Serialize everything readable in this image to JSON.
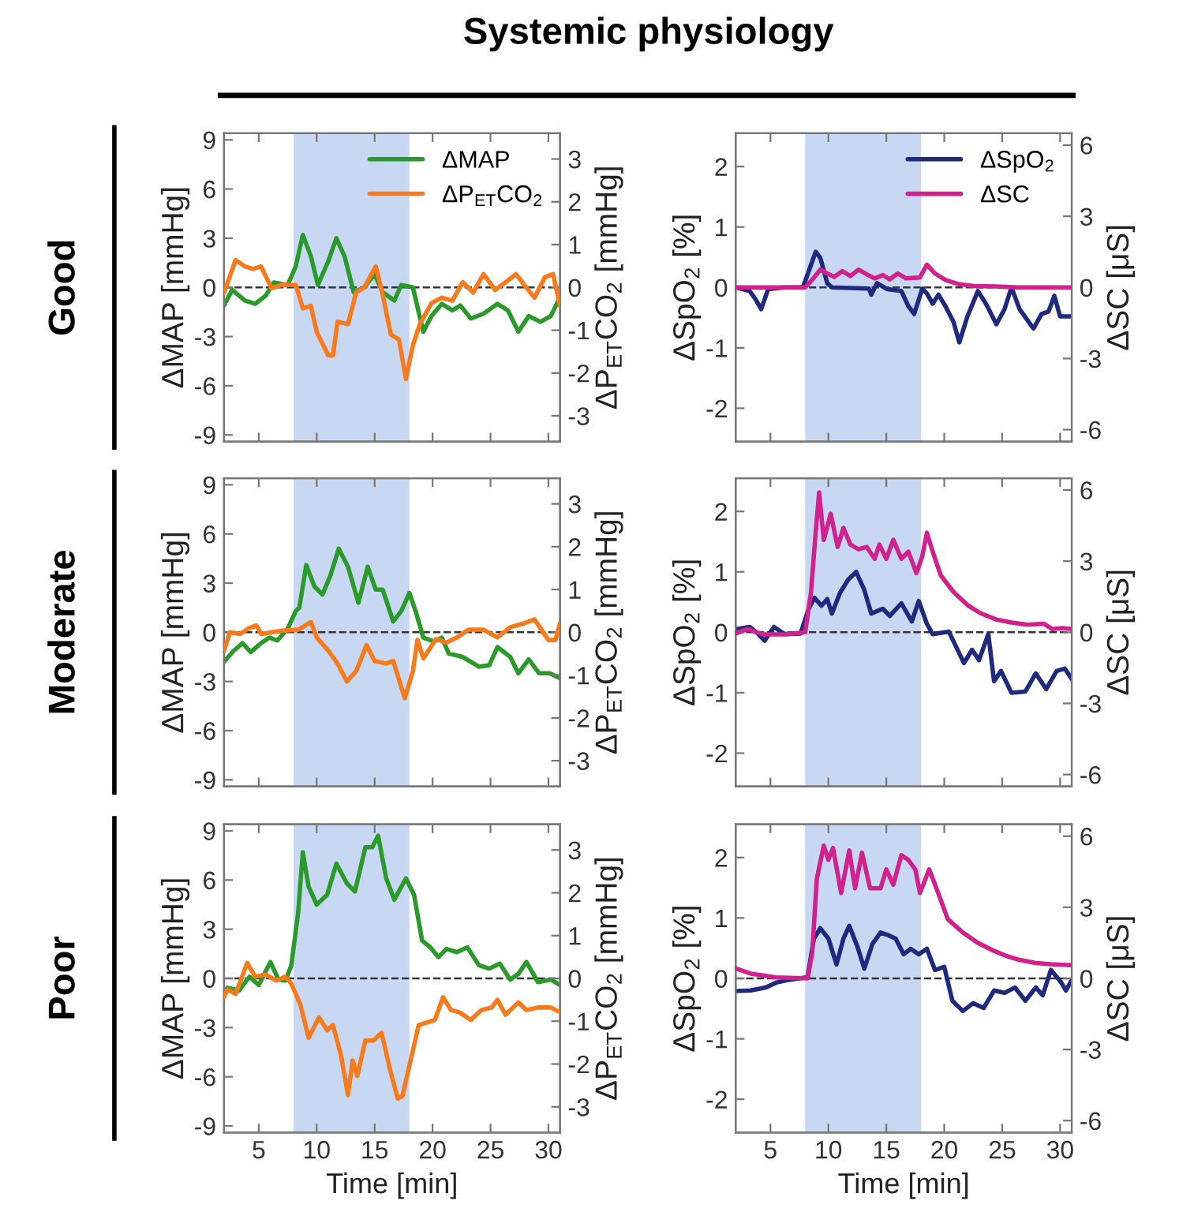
{
  "chart_data": [
    {
      "type": "line",
      "title": "Systemic physiology",
      "subtitle": "Good",
      "ylabel": "ΔMAP [mmHg]",
      "y2label": "ΔP$_{ET}$CO$_{2}$ [mmHg]",
      "xlim": [
        2,
        31
      ],
      "xticks": [
        5,
        10,
        15,
        20,
        25,
        30
      ],
      "ylim": [
        -9.4,
        9.4
      ],
      "yticks": [
        -9,
        -6,
        -3,
        0,
        3,
        6,
        9
      ],
      "y2lim": [
        -3.6,
        3.6
      ],
      "y2ticks": [
        -3,
        -2,
        -1,
        0,
        1,
        2,
        3
      ],
      "tick_labels": "y",
      "legend": "top right",
      "bands": [
        {
          "axis": "x",
          "from": 8,
          "to": 18,
          "color": "#c9d8f2"
        }
      ],
      "ref_lines": [
        {
          "axis": "y",
          "value": 0,
          "color": "#333333",
          "line_style": "dashed"
        }
      ],
      "series": [
        {
          "name": "ΔMAP",
          "color": "#2a9a2a",
          "x": [
            2,
            2.7,
            3.8,
            4.7,
            5.6,
            6.3,
            7.5,
            8.2,
            8.8,
            9.5,
            10.1,
            11.0,
            11.7,
            12.4,
            13.2,
            14.1,
            15.0,
            15.7,
            16.7,
            17.3,
            18.3,
            19.2,
            19.9,
            20.8,
            21.7,
            22.4,
            23.3,
            24.4,
            25.6,
            26.5,
            27.4,
            28.3,
            29.3,
            30.2,
            31
          ],
          "values": [
            -1.1,
            -0.15,
            -0.8,
            -1.0,
            -0.5,
            0.3,
            0.15,
            1.3,
            3.2,
            1.9,
            0.15,
            1.6,
            3.0,
            1.9,
            -0.3,
            0,
            0.8,
            -0.3,
            -0.8,
            0.15,
            0,
            -2.7,
            -1.75,
            -1.0,
            -1.4,
            -1.1,
            -1.9,
            -1.6,
            -1.0,
            -1.4,
            -2.7,
            -1.75,
            -2.1,
            -1.75,
            -0.6
          ]
        },
        {
          "name": "ΔP$_{ET}$CO$_{2}$",
          "color": "#f97a1b",
          "axis": "y2",
          "x": [
            2,
            3.0,
            3.8,
            4.5,
            5.2,
            6.1,
            7.0,
            8.2,
            8.8,
            9.5,
            10.0,
            11.0,
            11.4,
            11.8,
            12.7,
            13.4,
            14.1,
            15.1,
            15.7,
            16.4,
            17.1,
            17.7,
            18.3,
            18.9,
            19.9,
            20.8,
            21.7,
            22.6,
            23.5,
            24.4,
            25.4,
            26.3,
            27.2,
            27.9,
            28.8,
            29.7,
            30.4,
            31
          ],
          "values": [
            -0.12,
            0.64,
            0.49,
            0.43,
            0.49,
            -0.02,
            0.06,
            0.06,
            -0.49,
            -0.43,
            -1.04,
            -1.59,
            -1.59,
            -0.8,
            -0.86,
            -0.12,
            0,
            0.49,
            -0.18,
            -1.1,
            -1.22,
            -2.14,
            -1.35,
            -0.86,
            -0.37,
            -0.24,
            -0.31,
            0.12,
            -0.12,
            0.31,
            -0.06,
            0.12,
            0.31,
            0.06,
            -0.24,
            0.24,
            0.31,
            -0.43
          ]
        }
      ]
    },
    {
      "type": "line",
      "ylabel": "ΔSpO$_{2}$ [%]",
      "y2label": "ΔSC [μS]",
      "xlim": [
        2,
        31
      ],
      "xticks": [
        5,
        10,
        15,
        20,
        25,
        30
      ],
      "ylim": [
        -2.55,
        2.55
      ],
      "yticks": [
        -2,
        -1,
        0,
        1,
        2
      ],
      "y2lim": [
        -6.5,
        6.5
      ],
      "y2ticks": [
        -6,
        -3,
        0,
        3,
        6
      ],
      "tick_labels": "y",
      "legend": "top right",
      "bands": [
        {
          "axis": "x",
          "from": 8,
          "to": 18,
          "color": "#c9d8f2"
        }
      ],
      "ref_lines": [
        {
          "axis": "y",
          "value": 0,
          "color": "#333333",
          "line_style": "dashed"
        }
      ],
      "series": [
        {
          "name": "ΔSpO$_{2}$",
          "color": "#1f2a7e",
          "x": [
            2,
            3.2,
            3.7,
            4.2,
            4.8,
            6.2,
            7.8,
            8.4,
            8.9,
            9.3,
            9.9,
            10.3,
            13.5,
            13.7,
            14.2,
            15.1,
            16.3,
            16.9,
            17.4,
            18.1,
            18.5,
            19.0,
            19.5,
            20.1,
            20.8,
            21.3,
            22.0,
            22.9,
            23.6,
            24.5,
            25.2,
            25.8,
            26.5,
            27.7,
            28.4,
            29.0,
            29.5,
            30.0,
            31
          ],
          "values": [
            0,
            -0.06,
            -0.19,
            -0.36,
            -0.03,
            0,
            0,
            0.32,
            0.59,
            0.49,
            0.07,
            0,
            -0.02,
            -0.12,
            0.07,
            -0.03,
            -0.06,
            -0.31,
            -0.44,
            -0.02,
            -0.1,
            -0.27,
            -0.12,
            -0.31,
            -0.57,
            -0.91,
            -0.48,
            -0.06,
            -0.27,
            -0.61,
            -0.36,
            0,
            -0.36,
            -0.68,
            -0.44,
            -0.4,
            -0.14,
            -0.48,
            -0.48
          ]
        },
        {
          "name": "ΔSC",
          "color": "#d0218c",
          "axis": "y2",
          "x": [
            2,
            8.0,
            8.7,
            9.3,
            9.9,
            10.5,
            11.2,
            11.9,
            12.6,
            13.3,
            14.0,
            14.7,
            15.3,
            16.0,
            16.7,
            17.9,
            18.5,
            19.2,
            20.1,
            21.3,
            22.6,
            24.5,
            26.3,
            31
          ],
          "values": [
            0,
            0,
            0.38,
            0.75,
            0.59,
            0.44,
            0.69,
            0.48,
            0.75,
            0.55,
            0.38,
            0.52,
            0.34,
            0.59,
            0.38,
            0.42,
            0.96,
            0.59,
            0.31,
            0.13,
            0.06,
            0.04,
            0,
            0
          ]
        }
      ]
    },
    {
      "type": "line",
      "subtitle": "Moderate",
      "ylabel": "ΔMAP [mmHg]",
      "y2label": "ΔP$_{ET}$CO$_{2}$ [mmHg]",
      "xlim": [
        2,
        31
      ],
      "xticks": [
        5,
        10,
        15,
        20,
        25,
        30
      ],
      "ylim": [
        -9.4,
        9.4
      ],
      "yticks": [
        -9,
        -6,
        -3,
        0,
        3,
        6,
        9
      ],
      "y2lim": [
        -3.6,
        3.6
      ],
      "y2ticks": [
        -3,
        -2,
        -1,
        0,
        1,
        2,
        3
      ],
      "tick_labels": "y",
      "bands": [
        {
          "axis": "x",
          "from": 8,
          "to": 18,
          "color": "#c9d8f2"
        }
      ],
      "ref_lines": [
        {
          "axis": "y",
          "value": 0,
          "color": "#333333",
          "line_style": "dashed"
        }
      ],
      "series": [
        {
          "color": "#2a9a2a",
          "x": [
            2,
            2.8,
            3.6,
            4.3,
            5.2,
            5.9,
            6.6,
            7.5,
            8.2,
            8.5,
            9.1,
            9.8,
            10.5,
            11.2,
            11.9,
            12.7,
            13.6,
            14.4,
            15.1,
            15.7,
            16.6,
            17.3,
            18.0,
            18.6,
            19.2,
            20.1,
            20.8,
            21.4,
            22.6,
            24.0,
            24.9,
            25.6,
            26.7,
            27.4,
            28.3,
            29.2,
            30.1,
            31
          ],
          "values": [
            -1.8,
            -1.15,
            -0.66,
            -1.2,
            -0.66,
            -0.33,
            -0.5,
            0.23,
            1.3,
            1.5,
            4.1,
            2.8,
            2.3,
            3.5,
            5.1,
            4.0,
            1.8,
            4.0,
            2.6,
            2.6,
            0.66,
            1.3,
            2.4,
            1.15,
            -0.33,
            -0.56,
            -0.33,
            -1.3,
            -1.5,
            -2.1,
            -2.0,
            -0.9,
            -1.5,
            -2.5,
            -1.65,
            -2.5,
            -2.5,
            -2.8
          ]
        },
        {
          "color": "#f97a1b",
          "axis": "y2",
          "x": [
            2,
            2.5,
            3.4,
            4.1,
            4.8,
            5.2,
            7.0,
            8.4,
            9.5,
            10.0,
            11.0,
            11.8,
            12.6,
            13.4,
            14.3,
            15.0,
            16.0,
            16.6,
            17.6,
            18.3,
            18.7,
            19.2,
            20.3,
            21.2,
            22.1,
            23.1,
            24.4,
            25.6,
            26.7,
            27.9,
            28.8,
            30.0,
            30.6,
            31
          ],
          "values": [
            -0.43,
            0,
            -0.04,
            0.09,
            0.16,
            -0.04,
            0.04,
            0.06,
            0.24,
            -0.12,
            -0.43,
            -0.73,
            -1.15,
            -0.91,
            -0.3,
            -0.67,
            -0.73,
            -0.67,
            -1.54,
            -0.91,
            -0.18,
            -0.61,
            -0.16,
            -0.24,
            -0.12,
            0.06,
            0.06,
            -0.12,
            0.12,
            0.21,
            0.3,
            -0.18,
            -0.18,
            0.21
          ]
        }
      ]
    },
    {
      "type": "line",
      "ylabel": "ΔSpO$_{2}$ [%]",
      "y2label": "ΔSC [μS]",
      "xlim": [
        2,
        31
      ],
      "xticks": [
        5,
        10,
        15,
        20,
        25,
        30
      ],
      "ylim": [
        -2.55,
        2.55
      ],
      "yticks": [
        -2,
        -1,
        0,
        1,
        2
      ],
      "y2lim": [
        -6.5,
        6.5
      ],
      "y2ticks": [
        -6,
        -3,
        0,
        3,
        6
      ],
      "tick_labels": "y",
      "bands": [
        {
          "axis": "x",
          "from": 8,
          "to": 18,
          "color": "#c9d8f2"
        }
      ],
      "ref_lines": [
        {
          "axis": "y",
          "value": 0,
          "color": "#333333",
          "line_style": "dashed"
        }
      ],
      "series": [
        {
          "color": "#1f2a7e",
          "x": [
            2,
            3.2,
            3.9,
            4.5,
            5.3,
            6.2,
            7.6,
            8.3,
            8.8,
            9.4,
            9.9,
            10.3,
            11.0,
            11.7,
            12.4,
            13.1,
            13.7,
            14.7,
            15.3,
            16.3,
            17.2,
            17.8,
            18.5,
            19.0,
            20.4,
            21.7,
            22.4,
            23.0,
            23.8,
            24.3,
            24.9,
            25.8,
            27.0,
            27.9,
            28.8,
            29.7,
            30.4,
            31
          ],
          "values": [
            0.05,
            0.09,
            -0.02,
            -0.14,
            0.09,
            -0.03,
            -0.02,
            0.39,
            0.57,
            0.44,
            0.55,
            0.31,
            0.65,
            0.87,
            1.0,
            0.7,
            0.31,
            0.39,
            0.27,
            0.48,
            0.18,
            0.52,
            0.14,
            -0.03,
            0.01,
            -0.51,
            -0.29,
            -0.46,
            -0.03,
            -0.81,
            -0.64,
            -1.0,
            -0.98,
            -0.68,
            -0.94,
            -0.64,
            -0.6,
            -0.77
          ]
        },
        {
          "color": "#d0218c",
          "axis": "y2",
          "x": [
            2,
            3.0,
            4.4,
            6.2,
            8.0,
            8.5,
            8.9,
            9.2,
            9.6,
            10.2,
            10.8,
            11.3,
            11.9,
            12.6,
            13.3,
            14.0,
            14.4,
            15.0,
            15.6,
            16.3,
            16.9,
            17.6,
            18.1,
            18.5,
            19.0,
            19.7,
            20.8,
            22.0,
            23.1,
            24.5,
            25.8,
            27.2,
            28.6,
            29.3,
            30.2,
            31
          ],
          "values": [
            -0.05,
            0.14,
            -0.09,
            -0.09,
            0,
            1.7,
            4.2,
            5.9,
            3.9,
            5.0,
            3.6,
            4.4,
            3.7,
            3.5,
            3.6,
            3.1,
            3.7,
            3.1,
            3.9,
            3.1,
            3.4,
            2.5,
            3.2,
            4.2,
            3.4,
            2.4,
            1.7,
            1.15,
            0.81,
            0.54,
            0.41,
            0.32,
            0.36,
            0.14,
            0.18,
            0.14
          ]
        }
      ]
    },
    {
      "type": "line",
      "subtitle": "Poor",
      "xlabel": "Time [min]",
      "ylabel": "ΔMAP [mmHg]",
      "y2label": "ΔP$_{ET}$CO$_{2}$ [mmHg]",
      "xlim": [
        2,
        31
      ],
      "xticks": [
        5,
        10,
        15,
        20,
        25,
        30
      ],
      "ylim": [
        -9.4,
        9.4
      ],
      "yticks": [
        -9,
        -6,
        -3,
        0,
        3,
        6,
        9
      ],
      "y2lim": [
        -3.6,
        3.6
      ],
      "y2ticks": [
        -3,
        -2,
        -1,
        0,
        1,
        2,
        3
      ],
      "bands": [
        {
          "axis": "x",
          "from": 8,
          "to": 18,
          "color": "#c9d8f2"
        }
      ],
      "ref_lines": [
        {
          "axis": "y",
          "value": 0,
          "color": "#333333",
          "line_style": "dashed"
        }
      ],
      "series": [
        {
          "color": "#2a9a2a",
          "x": [
            2,
            2.3,
            3.3,
            4.2,
            5.0,
            6.0,
            6.7,
            7.3,
            7.8,
            8.4,
            8.8,
            9.3,
            10.0,
            10.9,
            11.7,
            12.6,
            13.3,
            14.2,
            14.8,
            15.3,
            16.0,
            16.7,
            17.7,
            18.4,
            19.1,
            19.8,
            20.5,
            21.2,
            22.1,
            23.0,
            24.0,
            24.9,
            25.8,
            26.7,
            27.4,
            28.1,
            29.1,
            30.2,
            31
          ],
          "values": [
            -0.9,
            -0.57,
            -0.74,
            0.1,
            -0.4,
            1.0,
            -0.07,
            -0.13,
            0.77,
            4.0,
            7.7,
            5.6,
            4.5,
            5.1,
            7.0,
            5.8,
            5.3,
            8.0,
            8.0,
            8.7,
            6.1,
            4.8,
            6.1,
            5.1,
            2.3,
            1.9,
            1.3,
            1.8,
            1.6,
            1.9,
            0.8,
            0.6,
            0.9,
            -0.07,
            0.27,
            1.0,
            -0.23,
            -0.07,
            -0.4
          ]
        },
        {
          "color": "#f97a1b",
          "axis": "y2",
          "x": [
            2,
            2.3,
            3.0,
            4.0,
            4.7,
            5.6,
            6.5,
            7.3,
            7.8,
            8.6,
            9.3,
            10.2,
            10.9,
            11.4,
            12.1,
            12.7,
            13.1,
            13.5,
            14.2,
            14.9,
            15.6,
            16.3,
            17.0,
            17.4,
            18.1,
            18.8,
            19.5,
            20.2,
            20.9,
            21.6,
            22.3,
            23.3,
            24.2,
            25.1,
            25.6,
            26.3,
            27.4,
            28.1,
            29.1,
            30.2,
            31
          ],
          "values": [
            -0.44,
            -0.26,
            -0.36,
            0.36,
            0.04,
            0.09,
            -0.05,
            0.04,
            -0.12,
            -0.62,
            -1.39,
            -0.91,
            -1.21,
            -1.09,
            -1.8,
            -2.73,
            -1.92,
            -2.28,
            -1.45,
            -1.45,
            -1.27,
            -2.1,
            -2.81,
            -2.75,
            -1.92,
            -1.09,
            -1.03,
            -0.97,
            -0.44,
            -0.74,
            -0.79,
            -0.97,
            -0.74,
            -0.68,
            -0.5,
            -0.85,
            -0.56,
            -0.74,
            -0.68,
            -0.68,
            -0.79
          ]
        }
      ]
    },
    {
      "type": "line",
      "xlabel": "Time [min]",
      "ylabel": "ΔSpO$_{2}$ [%]",
      "y2label": "ΔSC [μS]",
      "xlim": [
        2,
        31
      ],
      "xticks": [
        5,
        10,
        15,
        20,
        25,
        30
      ],
      "ylim": [
        -2.55,
        2.55
      ],
      "yticks": [
        -2,
        -1,
        0,
        1,
        2
      ],
      "y2lim": [
        -6.5,
        6.5
      ],
      "y2ticks": [
        -6,
        -3,
        0,
        3,
        6
      ],
      "bands": [
        {
          "axis": "x",
          "from": 8,
          "to": 18,
          "color": "#c9d8f2"
        }
      ],
      "ref_lines": [
        {
          "axis": "y",
          "value": 0,
          "color": "#333333",
          "line_style": "dashed"
        }
      ],
      "series": [
        {
          "color": "#1f2a7e",
          "x": [
            2,
            3.3,
            4.6,
            5.5,
            6.4,
            7.5,
            8.2,
            8.75,
            9.3,
            10.0,
            10.7,
            11.3,
            11.8,
            12.5,
            13.1,
            13.8,
            14.5,
            15.1,
            15.8,
            16.5,
            17.1,
            17.8,
            18.5,
            19.2,
            20.0,
            20.7,
            21.6,
            22.5,
            23.4,
            24.3,
            25.2,
            26.1,
            27.0,
            27.9,
            28.5,
            29.2,
            30.1,
            30.5,
            31
          ],
          "values": [
            -0.21,
            -0.2,
            -0.15,
            -0.07,
            -0.03,
            0,
            0.02,
            0.66,
            0.83,
            0.66,
            0.23,
            0.66,
            0.87,
            0.53,
            0.16,
            0.57,
            0.76,
            0.72,
            0.66,
            0.4,
            0.49,
            0.4,
            0.49,
            0.14,
            0.19,
            -0.37,
            -0.54,
            -0.41,
            -0.49,
            -0.2,
            -0.24,
            -0.15,
            -0.37,
            -0.15,
            -0.28,
            0.14,
            -0.07,
            -0.2,
            -0.03
          ]
        },
        {
          "color": "#d0218c",
          "axis": "y2",
          "x": [
            2,
            3.3,
            5.5,
            8.2,
            8.6,
            9.0,
            9.6,
            10.0,
            10.4,
            11.1,
            11.8,
            12.3,
            12.9,
            13.6,
            14.5,
            15.0,
            15.6,
            16.3,
            16.9,
            17.5,
            17.9,
            18.7,
            19.4,
            20.3,
            21.6,
            22.9,
            24.3,
            25.4,
            26.5,
            27.9,
            29.2,
            31
          ],
          "values": [
            0.42,
            0.2,
            0.04,
            0,
            1.05,
            4.2,
            5.6,
            5.0,
            5.5,
            3.6,
            5.4,
            3.8,
            5.3,
            3.8,
            3.8,
            4.6,
            3.95,
            5.2,
            5.0,
            4.6,
            3.6,
            4.6,
            3.7,
            2.5,
            1.94,
            1.5,
            1.16,
            0.94,
            0.78,
            0.65,
            0.6,
            0.56
          ]
        }
      ]
    }
  ]
}
